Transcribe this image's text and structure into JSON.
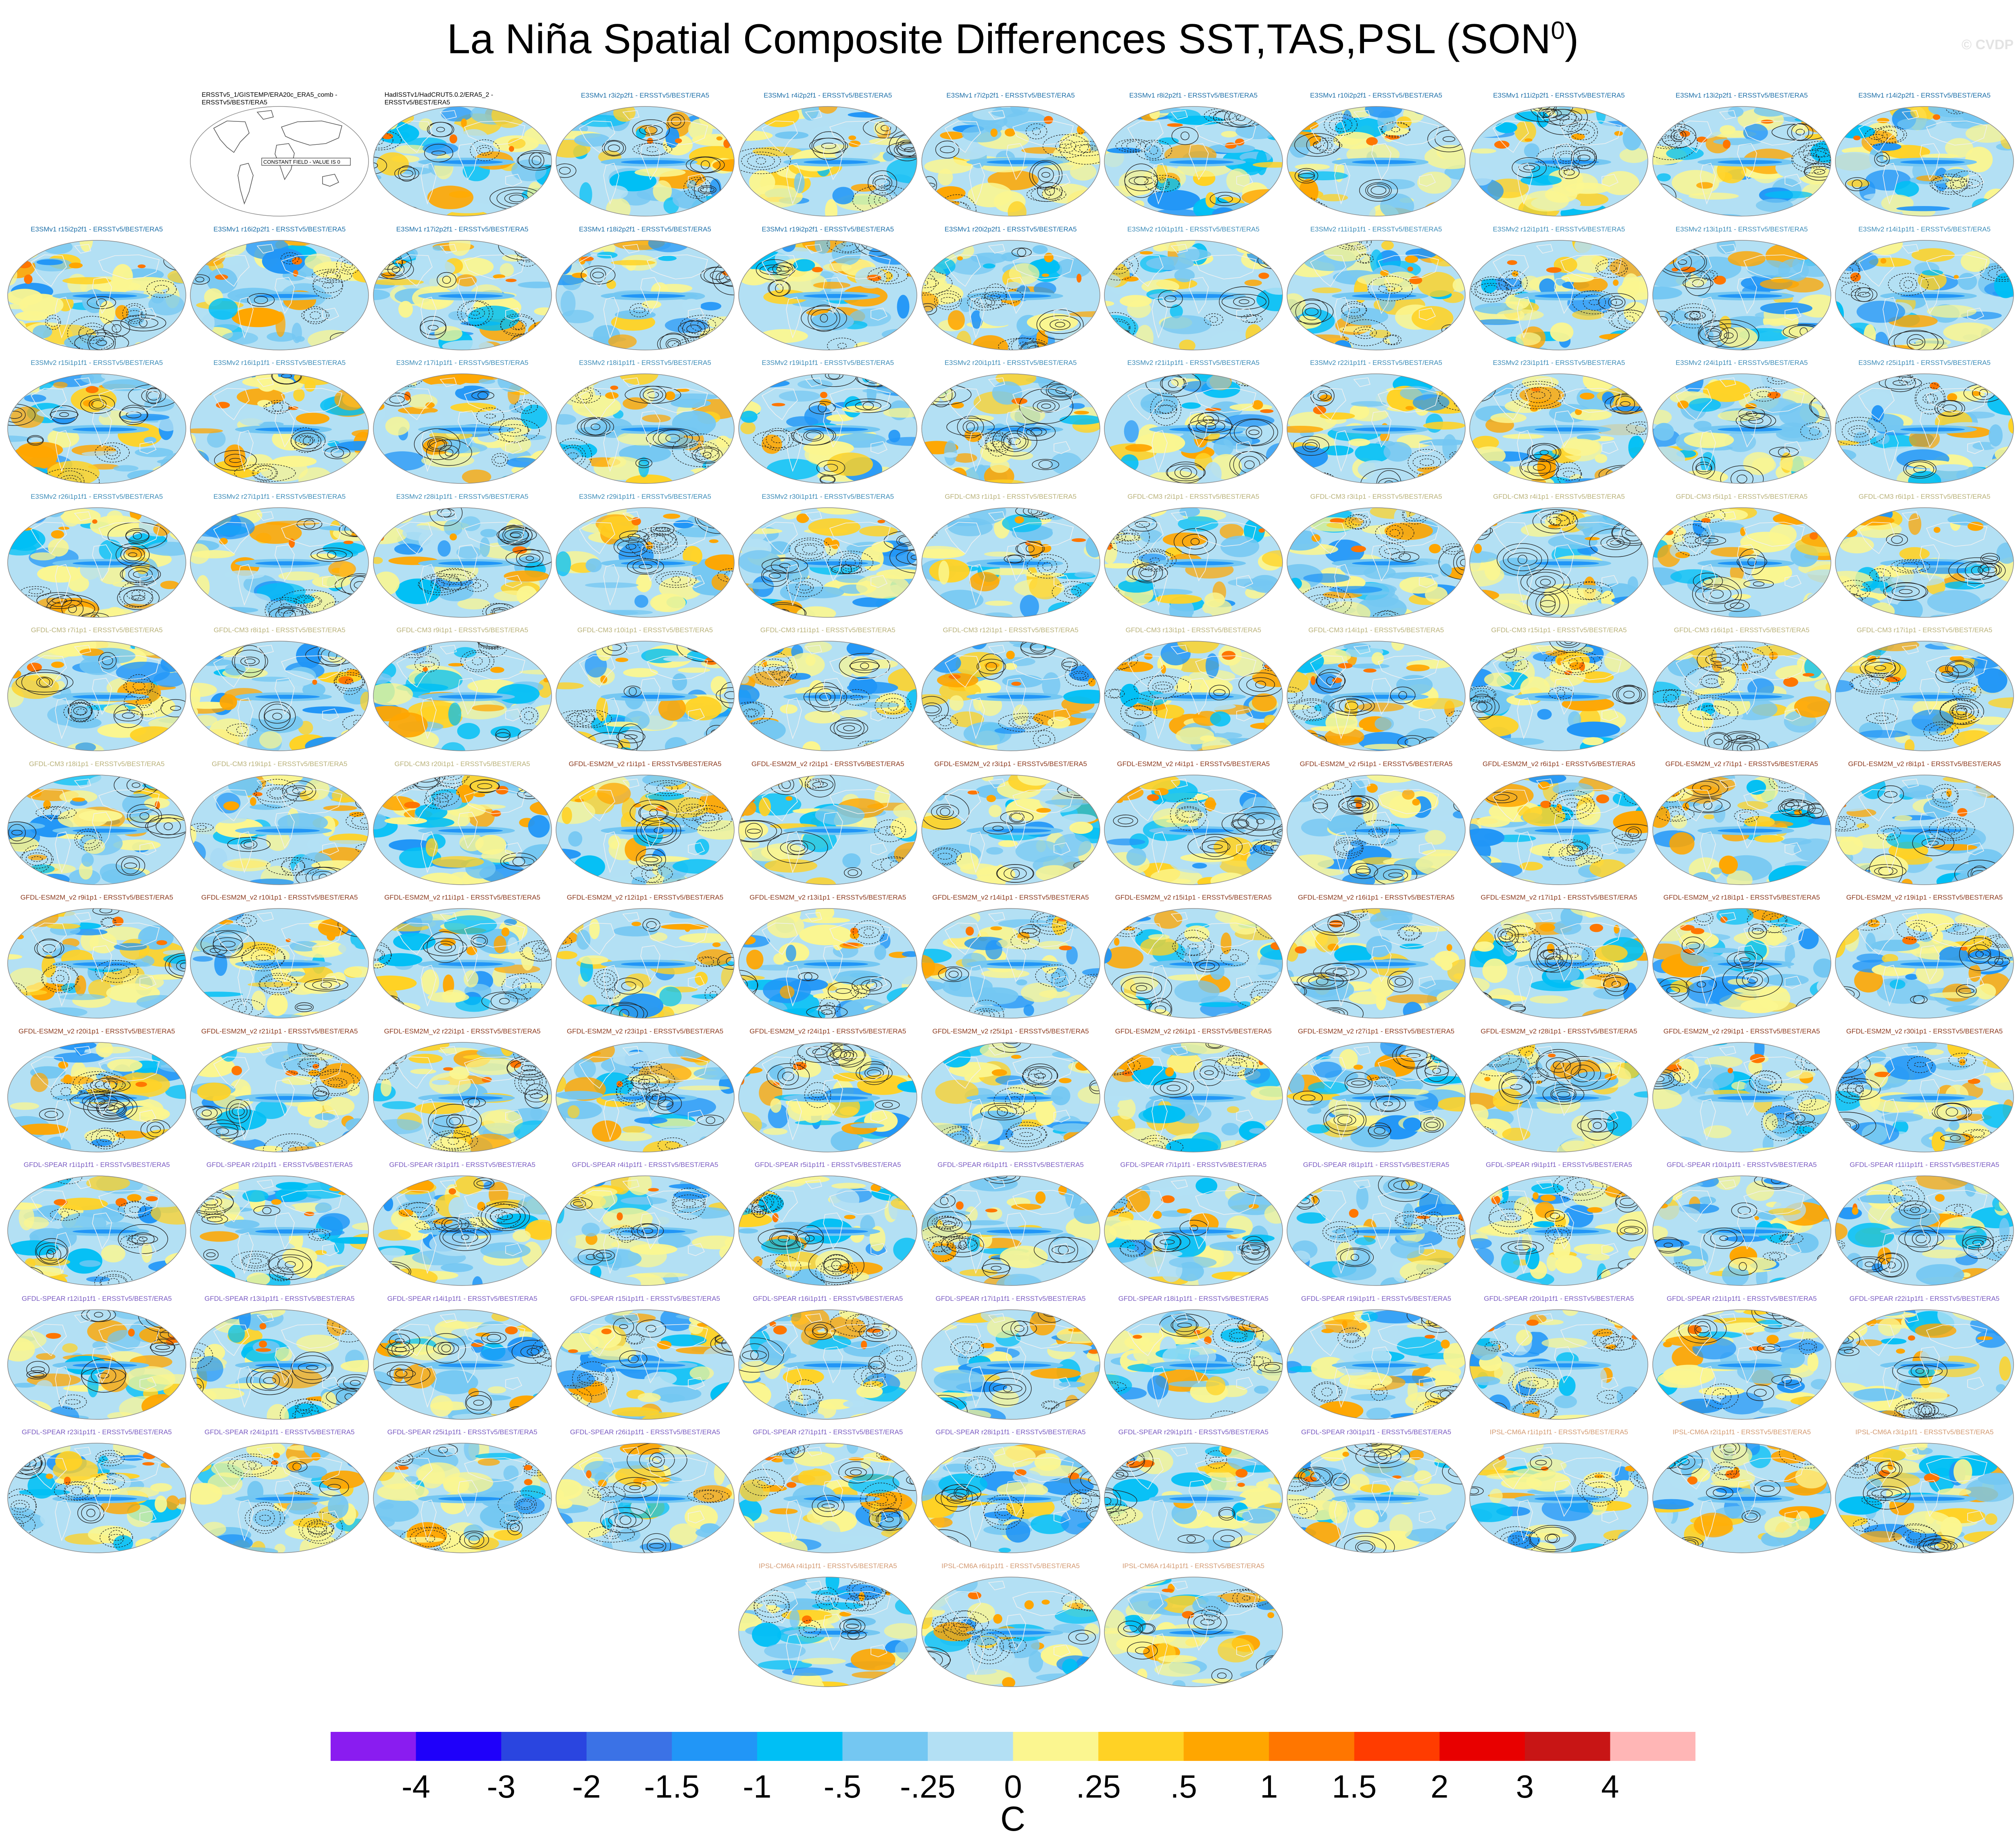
{
  "title_main": "La Niña Spatial Composite Differences SST,TAS,PSL (SON",
  "title_sup": "0",
  "title_close": ")",
  "watermark": "© CVDP",
  "colorbar": {
    "colors": [
      "#8a1cf0",
      "#1f00fa",
      "#2a45e0",
      "#3b72e6",
      "#2196f7",
      "#00bff5",
      "#74c7f2",
      "#b3e0f4",
      "#fbf690",
      "#ffd225",
      "#ffa600",
      "#ff7600",
      "#ff3c00",
      "#e80000",
      "#c81515",
      "#ffb6b6"
    ],
    "tick_labels": [
      "-4",
      "-3",
      "-2",
      "-1.5",
      "-1",
      "-.5",
      "-.25",
      "0",
      ".25",
      ".5",
      "1",
      "1.5",
      "2",
      "3",
      "4"
    ],
    "units": "C"
  },
  "obs_panels": [
    {
      "label": "ERSSTv5_1/GISTEMP/ERA20c_ERA5_comb - ERSSTv5/BEST/ERA5",
      "map_note": "CONSTANT FIELD - VALUE IS 0"
    },
    {
      "label": "HadISSTv1/HadCRUT5.0.2/ERA5_2 - ERSSTv5/BEST/ERA5"
    }
  ],
  "model_groups": [
    {
      "name": "E3SMv1",
      "color": "#1d6fa8",
      "labels": [
        "E3SMv1 r3i2p2f1 - ERSSTv5/BEST/ERA5",
        "E3SMv1 r4i2p2f1 - ERSSTv5/BEST/ERA5",
        "E3SMv1 r7i2p2f1 - ERSSTv5/BEST/ERA5",
        "E3SMv1 r8i2p2f1 - ERSSTv5/BEST/ERA5",
        "E3SMv1 r10i2p2f1 - ERSSTv5/BEST/ERA5",
        "E3SMv1 r11i2p2f1 - ERSSTv5/BEST/ERA5",
        "E3SMv1 r13i2p2f1 - ERSSTv5/BEST/ERA5",
        "E3SMv1 r14i2p2f1 - ERSSTv5/BEST/ERA5",
        "E3SMv1 r15i2p2f1 - ERSSTv5/BEST/ERA5",
        "E3SMv1 r16i2p2f1 - ERSSTv5/BEST/ERA5",
        "E3SMv1 r17i2p2f1 - ERSSTv5/BEST/ERA5",
        "E3SMv1 r18i2p2f1 - ERSSTv5/BEST/ERA5",
        "E3SMv1 r19i2p2f1 - ERSSTv5/BEST/ERA5",
        "E3SMv1 r20i2p2f1 - ERSSTv5/BEST/ERA5"
      ]
    },
    {
      "name": "E3SMv2",
      "color": "#3c8cb8",
      "labels": [
        "E3SMv2 r10i1p1f1 - ERSSTv5/BEST/ERA5",
        "E3SMv2 r11i1p1f1 - ERSSTv5/BEST/ERA5",
        "E3SMv2 r12i1p1f1 - ERSSTv5/BEST/ERA5",
        "E3SMv2 r13i1p1f1 - ERSSTv5/BEST/ERA5",
        "E3SMv2 r14i1p1f1 - ERSSTv5/BEST/ERA5",
        "E3SMv2 r15i1p1f1 - ERSSTv5/BEST/ERA5",
        "E3SMv2 r16i1p1f1 - ERSSTv5/BEST/ERA5",
        "E3SMv2 r17i1p1f1 - ERSSTv5/BEST/ERA5",
        "E3SMv2 r18i1p1f1 - ERSSTv5/BEST/ERA5",
        "E3SMv2 r19i1p1f1 - ERSSTv5/BEST/ERA5",
        "E3SMv2 r20i1p1f1 - ERSSTv5/BEST/ERA5",
        "E3SMv2 r21i1p1f1 - ERSSTv5/BEST/ERA5",
        "E3SMv2 r22i1p1f1 - ERSSTv5/BEST/ERA5",
        "E3SMv2 r23i1p1f1 - ERSSTv5/BEST/ERA5",
        "E3SMv2 r24i1p1f1 - ERSSTv5/BEST/ERA5",
        "E3SMv2 r25i1p1f1 - ERSSTv5/BEST/ERA5",
        "E3SMv2 r26i1p1f1 - ERSSTv5/BEST/ERA5",
        "E3SMv2 r27i1p1f1 - ERSSTv5/BEST/ERA5",
        "E3SMv2 r28i1p1f1 - ERSSTv5/BEST/ERA5",
        "E3SMv2 r29i1p1f1 - ERSSTv5/BEST/ERA5",
        "E3SMv2 r30i1p1f1 - ERSSTv5/BEST/ERA5"
      ]
    },
    {
      "name": "GFDL-CM3",
      "color": "#b9b27a",
      "labels": [
        "GFDL-CM3 r1i1p1 - ERSSTv5/BEST/ERA5",
        "GFDL-CM3 r2i1p1 - ERSSTv5/BEST/ERA5",
        "GFDL-CM3 r3i1p1 - ERSSTv5/BEST/ERA5",
        "GFDL-CM3 r4i1p1 - ERSSTv5/BEST/ERA5",
        "GFDL-CM3 r5i1p1 - ERSSTv5/BEST/ERA5",
        "GFDL-CM3 r6i1p1 - ERSSTv5/BEST/ERA5",
        "GFDL-CM3 r7i1p1 - ERSSTv5/BEST/ERA5",
        "GFDL-CM3 r8i1p1 - ERSSTv5/BEST/ERA5",
        "GFDL-CM3 r9i1p1 - ERSSTv5/BEST/ERA5",
        "GFDL-CM3 r10i1p1 - ERSSTv5/BEST/ERA5",
        "GFDL-CM3 r11i1p1 - ERSSTv5/BEST/ERA5",
        "GFDL-CM3 r12i1p1 - ERSSTv5/BEST/ERA5",
        "GFDL-CM3 r13i1p1 - ERSSTv5/BEST/ERA5",
        "GFDL-CM3 r14i1p1 - ERSSTv5/BEST/ERA5",
        "GFDL-CM3 r15i1p1 - ERSSTv5/BEST/ERA5",
        "GFDL-CM3 r16i1p1 - ERSSTv5/BEST/ERA5",
        "GFDL-CM3 r17i1p1 - ERSSTv5/BEST/ERA5",
        "GFDL-CM3 r18i1p1 - ERSSTv5/BEST/ERA5",
        "GFDL-CM3 r19i1p1 - ERSSTv5/BEST/ERA5",
        "GFDL-CM3 r20i1p1 - ERSSTv5/BEST/ERA5"
      ]
    },
    {
      "name": "GFDL-ESM2M_v2",
      "color": "#8c3a1e",
      "labels": [
        "GFDL-ESM2M_v2 r1i1p1 - ERSSTv5/BEST/ERA5",
        "GFDL-ESM2M_v2 r2i1p1 - ERSSTv5/BEST/ERA5",
        "GFDL-ESM2M_v2 r3i1p1 - ERSSTv5/BEST/ERA5",
        "GFDL-ESM2M_v2 r4i1p1 - ERSSTv5/BEST/ERA5",
        "GFDL-ESM2M_v2 r5i1p1 - ERSSTv5/BEST/ERA5",
        "GFDL-ESM2M_v2 r6i1p1 - ERSSTv5/BEST/ERA5",
        "GFDL-ESM2M_v2 r7i1p1 - ERSSTv5/BEST/ERA5",
        "GFDL-ESM2M_v2 r8i1p1 - ERSSTv5/BEST/ERA5",
        "GFDL-ESM2M_v2 r9i1p1 - ERSSTv5/BEST/ERA5",
        "GFDL-ESM2M_v2 r10i1p1 - ERSSTv5/BEST/ERA5",
        "GFDL-ESM2M_v2 r11i1p1 - ERSSTv5/BEST/ERA5",
        "GFDL-ESM2M_v2 r12i1p1 - ERSSTv5/BEST/ERA5",
        "GFDL-ESM2M_v2 r13i1p1 - ERSSTv5/BEST/ERA5",
        "GFDL-ESM2M_v2 r14i1p1 - ERSSTv5/BEST/ERA5",
        "GFDL-ESM2M_v2 r15i1p1 - ERSSTv5/BEST/ERA5",
        "GFDL-ESM2M_v2 r16i1p1 - ERSSTv5/BEST/ERA5",
        "GFDL-ESM2M_v2 r17i1p1 - ERSSTv5/BEST/ERA5",
        "GFDL-ESM2M_v2 r18i1p1 - ERSSTv5/BEST/ERA5",
        "GFDL-ESM2M_v2 r19i1p1 - ERSSTv5/BEST/ERA5",
        "GFDL-ESM2M_v2 r20i1p1 - ERSSTv5/BEST/ERA5",
        "GFDL-ESM2M_v2 r21i1p1 - ERSSTv5/BEST/ERA5",
        "GFDL-ESM2M_v2 r22i1p1 - ERSSTv5/BEST/ERA5",
        "GFDL-ESM2M_v2 r23i1p1 - ERSSTv5/BEST/ERA5",
        "GFDL-ESM2M_v2 r24i1p1 - ERSSTv5/BEST/ERA5",
        "GFDL-ESM2M_v2 r25i1p1 - ERSSTv5/BEST/ERA5",
        "GFDL-ESM2M_v2 r26i1p1 - ERSSTv5/BEST/ERA5",
        "GFDL-ESM2M_v2 r27i1p1 - ERSSTv5/BEST/ERA5",
        "GFDL-ESM2M_v2 r28i1p1 - ERSSTv5/BEST/ERA5",
        "GFDL-ESM2M_v2 r29i1p1 - ERSSTv5/BEST/ERA5",
        "GFDL-ESM2M_v2 r30i1p1 - ERSSTv5/BEST/ERA5"
      ]
    },
    {
      "name": "GFDL-SPEAR",
      "color": "#7a5bc2",
      "labels": [
        "GFDL-SPEAR r1i1p1f1 - ERSSTv5/BEST/ERA5",
        "GFDL-SPEAR r2i1p1f1 - ERSSTv5/BEST/ERA5",
        "GFDL-SPEAR r3i1p1f1 - ERSSTv5/BEST/ERA5",
        "GFDL-SPEAR r4i1p1f1 - ERSSTv5/BEST/ERA5",
        "GFDL-SPEAR r5i1p1f1 - ERSSTv5/BEST/ERA5",
        "GFDL-SPEAR r6i1p1f1 - ERSSTv5/BEST/ERA5",
        "GFDL-SPEAR r7i1p1f1 - ERSSTv5/BEST/ERA5",
        "GFDL-SPEAR r8i1p1f1 - ERSSTv5/BEST/ERA5",
        "GFDL-SPEAR r9i1p1f1 - ERSSTv5/BEST/ERA5",
        "GFDL-SPEAR r10i1p1f1 - ERSSTv5/BEST/ERA5",
        "GFDL-SPEAR r11i1p1f1 - ERSSTv5/BEST/ERA5",
        "GFDL-SPEAR r12i1p1f1 - ERSSTv5/BEST/ERA5",
        "GFDL-SPEAR r13i1p1f1 - ERSSTv5/BEST/ERA5",
        "GFDL-SPEAR r14i1p1f1 - ERSSTv5/BEST/ERA5",
        "GFDL-SPEAR r15i1p1f1 - ERSSTv5/BEST/ERA5",
        "GFDL-SPEAR r16i1p1f1 - ERSSTv5/BEST/ERA5",
        "GFDL-SPEAR r17i1p1f1 - ERSSTv5/BEST/ERA5",
        "GFDL-SPEAR r18i1p1f1 - ERSSTv5/BEST/ERA5",
        "GFDL-SPEAR r19i1p1f1 - ERSSTv5/BEST/ERA5",
        "GFDL-SPEAR r20i1p1f1 - ERSSTv5/BEST/ERA5",
        "GFDL-SPEAR r21i1p1f1 - ERSSTv5/BEST/ERA5",
        "GFDL-SPEAR r22i1p1f1 - ERSSTv5/BEST/ERA5",
        "GFDL-SPEAR r23i1p1f1 - ERSSTv5/BEST/ERA5",
        "GFDL-SPEAR r24i1p1f1 - ERSSTv5/BEST/ERA5",
        "GFDL-SPEAR r25i1p1f1 - ERSSTv5/BEST/ERA5",
        "GFDL-SPEAR r26i1p1f1 - ERSSTv5/BEST/ERA5",
        "GFDL-SPEAR r27i1p1f1 - ERSSTv5/BEST/ERA5",
        "GFDL-SPEAR r28i1p1f1 - ERSSTv5/BEST/ERA5",
        "GFDL-SPEAR r29i1p1f1 - ERSSTv5/BEST/ERA5",
        "GFDL-SPEAR r30i1p1f1 - ERSSTv5/BEST/ERA5"
      ]
    },
    {
      "name": "IPSL-CM6A",
      "color": "#d39a72",
      "labels": [
        "IPSL-CM6A r1i1p1f1 - ERSSTv5/BEST/ERA5",
        "IPSL-CM6A r2i1p1f1 - ERSSTv5/BEST/ERA5",
        "IPSL-CM6A r3i1p1f1 - ERSSTv5/BEST/ERA5",
        "IPSL-CM6A r4i1p1f1 - ERSSTv5/BEST/ERA5",
        "IPSL-CM6A r6i1p1f1 - ERSSTv5/BEST/ERA5",
        "IPSL-CM6A r14i1p1f1 - ERSSTv5/BEST/ERA5"
      ]
    }
  ]
}
